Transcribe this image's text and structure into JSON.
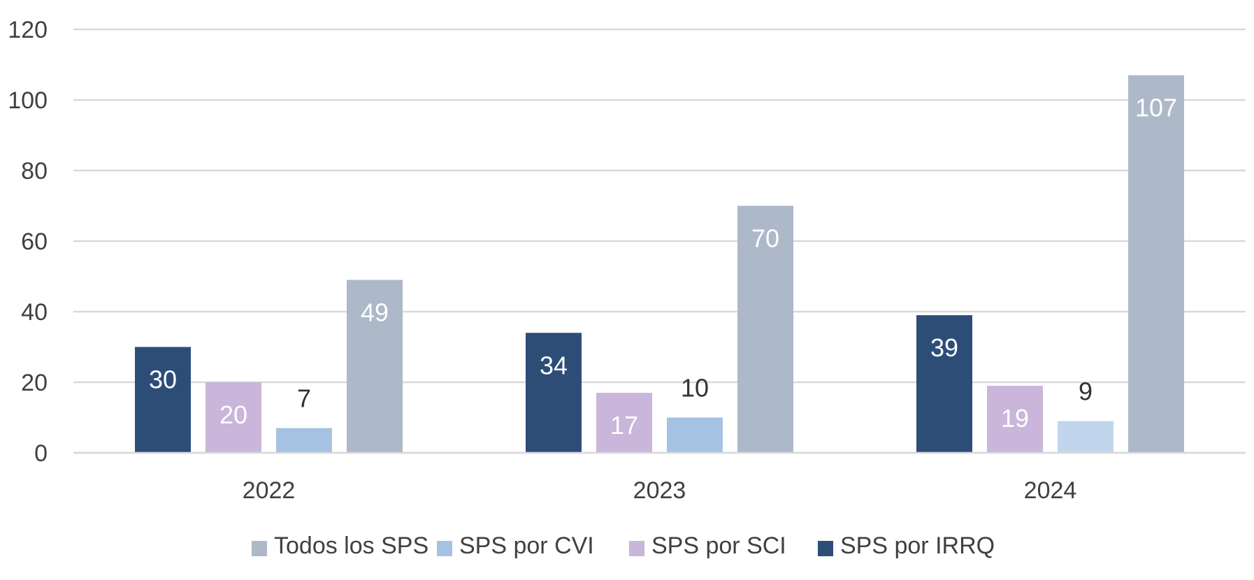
{
  "chart_data": {
    "type": "bar",
    "title": "",
    "xlabel": "",
    "ylabel": "",
    "categories": [
      "2022",
      "2023",
      "2024"
    ],
    "ylim": [
      0,
      120
    ],
    "yticks": [
      0,
      20,
      40,
      60,
      80,
      100,
      120
    ],
    "grid": true,
    "legend_position": "bottom",
    "series": [
      {
        "name": "SPS por IRRQ",
        "values": [
          30,
          34,
          39
        ],
        "color": "#2d4d77",
        "label_color": "#ffffff",
        "labels_inside": true
      },
      {
        "name": "SPS por SCI",
        "values": [
          20,
          17,
          19
        ],
        "color": "#c9b6da",
        "label_color": "#ffffff",
        "labels_inside": true
      },
      {
        "name": "SPS por CVI",
        "values": [
          7,
          10,
          9
        ],
        "color": "#a6c2e2",
        "colors": [
          "#a6c2e2",
          "#a6c2e2",
          "#c1d6ec"
        ],
        "label_color": "#333333",
        "labels_inside": false
      },
      {
        "name": "Todos los SPS",
        "values": [
          49,
          70,
          107
        ],
        "color": "#adb8c8",
        "label_color": "#ffffff",
        "labels_inside": true
      }
    ],
    "legend_order": [
      "Todos los SPS",
      "SPS por CVI",
      "SPS por SCI",
      "SPS por IRRQ"
    ]
  }
}
